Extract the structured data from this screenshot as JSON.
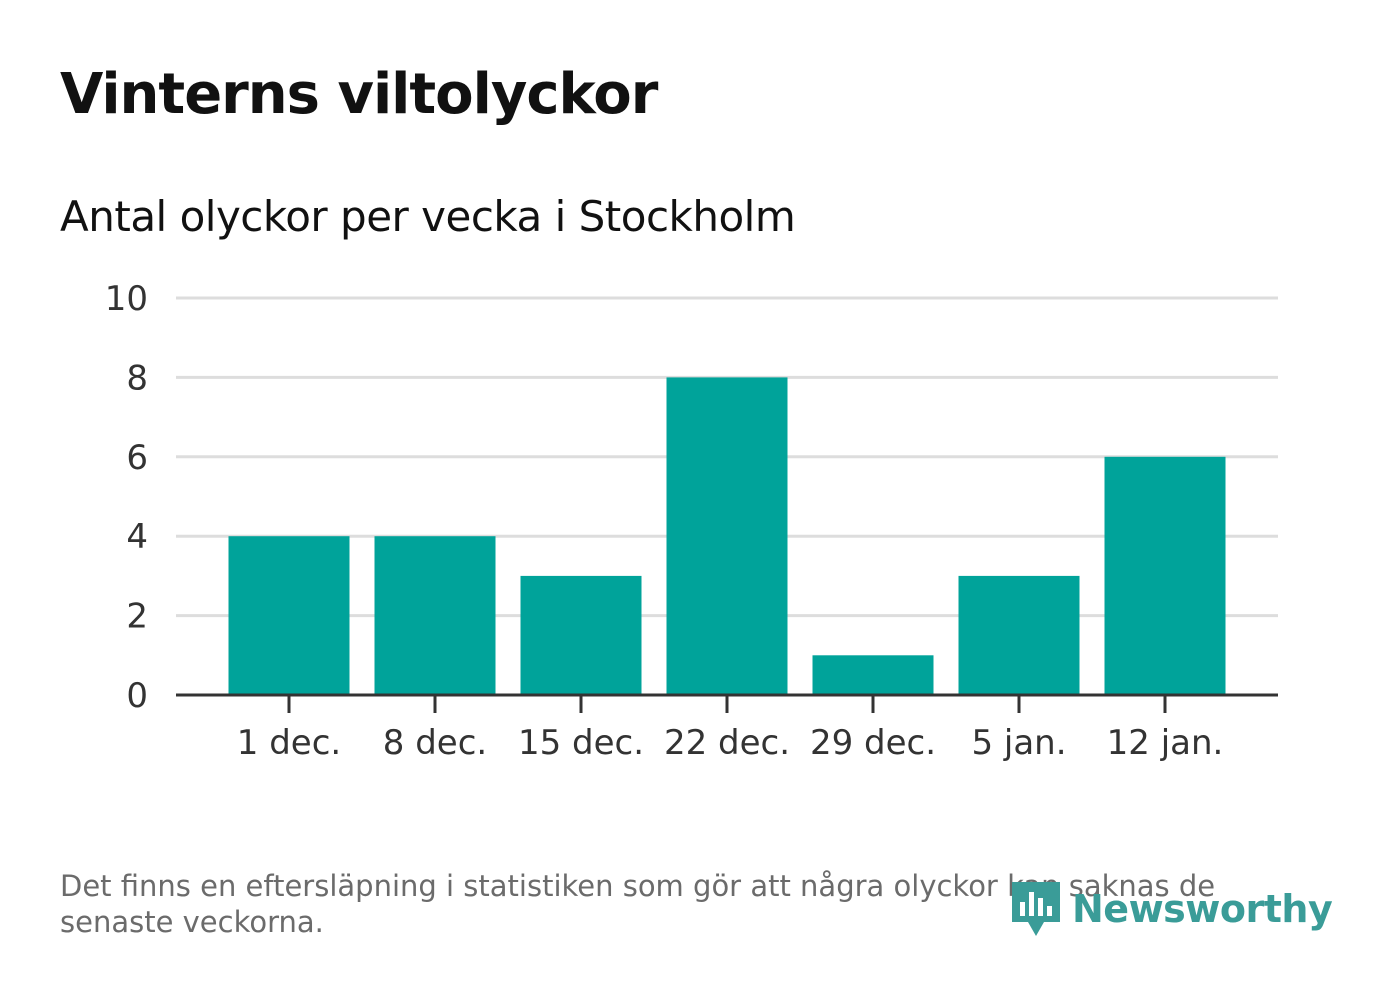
{
  "title": "Vinterns viltolyckor",
  "subtitle": "Antal olyckor per vecka i Stockholm",
  "footnote": "Det finns en eftersläpning i statistiken som gör att några olyckor kan saknas de senaste veckorna.",
  "brand": {
    "name": "Newsworthy",
    "icon": "newsworthy-logo-icon",
    "color": "#3a9c98"
  },
  "colors": {
    "bar": "#00a39a",
    "grid": "#dddddd",
    "axis": "#333333"
  },
  "chart_data": {
    "type": "bar",
    "title": "Vinterns viltolyckor",
    "subtitle": "Antal olyckor per vecka i Stockholm",
    "categories": [
      "1 dec.",
      "8 dec.",
      "15 dec.",
      "22 dec.",
      "29 dec.",
      "5 jan.",
      "12 jan."
    ],
    "values": [
      4,
      4,
      3,
      8,
      1,
      3,
      6
    ],
    "ylim": [
      0,
      10
    ],
    "yticks": [
      0,
      2,
      4,
      6,
      8,
      10
    ],
    "grid": true,
    "legend": "none",
    "xlabel": "",
    "ylabel": ""
  }
}
